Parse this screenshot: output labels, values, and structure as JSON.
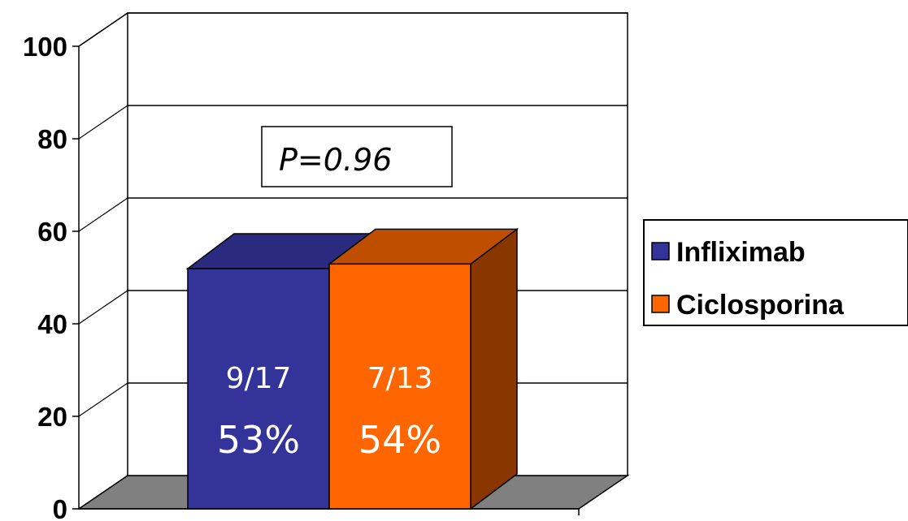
{
  "chart_data": {
    "type": "bar",
    "style": "3d",
    "categories": [
      ""
    ],
    "series": [
      {
        "name": "Infliximab",
        "values": [
          53
        ],
        "label_fraction": "9/17",
        "label_percent": "53%",
        "color": "#333399",
        "top_color": "#2a2a80",
        "side_color": "#1f1f66"
      },
      {
        "name": "Ciclosporina",
        "values": [
          54
        ],
        "label_fraction": "7/13",
        "label_percent": "54%",
        "color": "#ff6600",
        "top_color": "#c04e00",
        "side_color": "#8a3600"
      }
    ],
    "ylim": [
      0,
      100
    ],
    "yticks": [
      "0",
      "20",
      "40",
      "60",
      "80",
      "100"
    ],
    "annotation": "P=0.96",
    "grid": true,
    "legend_position": "right",
    "floor_color": "#808080"
  }
}
